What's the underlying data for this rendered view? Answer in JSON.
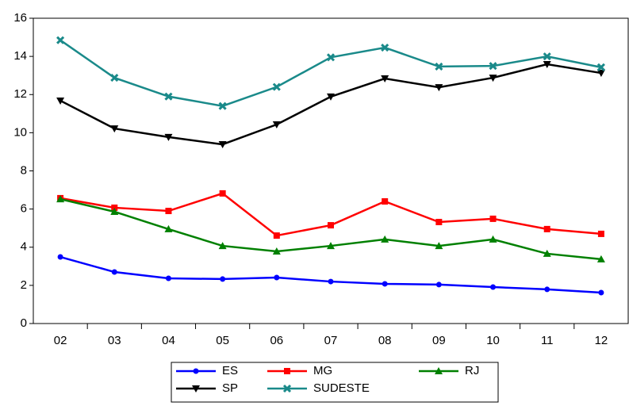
{
  "chart_data": {
    "type": "line",
    "categories": [
      "02",
      "03",
      "04",
      "05",
      "06",
      "07",
      "08",
      "09",
      "10",
      "11",
      "12"
    ],
    "ylim": [
      0,
      16
    ],
    "yticks": [
      0,
      2,
      4,
      6,
      8,
      10,
      12,
      14,
      16
    ],
    "legend": "bottom",
    "series": [
      {
        "name": "ES",
        "color": "#0000ff",
        "marker": "circle",
        "values": [
          3.49,
          2.7,
          2.37,
          2.33,
          2.41,
          2.2,
          2.08,
          2.04,
          1.91,
          1.79,
          1.62
        ]
      },
      {
        "name": "MG",
        "color": "#ff0000",
        "marker": "square",
        "values": [
          6.57,
          6.07,
          5.9,
          6.82,
          4.61,
          5.15,
          6.4,
          5.32,
          5.49,
          4.95,
          4.7
        ]
      },
      {
        "name": "RJ",
        "color": "#008000",
        "marker": "triangle",
        "values": [
          6.52,
          5.86,
          4.95,
          4.07,
          3.78,
          4.07,
          4.41,
          4.07,
          4.41,
          3.66,
          3.37
        ]
      },
      {
        "name": "SP",
        "color": "#000000",
        "marker": "triangle-down",
        "values": [
          11.68,
          10.22,
          9.77,
          9.39,
          10.43,
          11.89,
          12.84,
          12.38,
          12.88,
          13.59,
          13.13
        ]
      },
      {
        "name": "SUDESTE",
        "color": "#1a8a8a",
        "marker": "x",
        "values": [
          14.85,
          12.88,
          11.9,
          11.4,
          12.4,
          13.95,
          14.46,
          13.47,
          13.5,
          14.0,
          13.43
        ]
      }
    ]
  }
}
